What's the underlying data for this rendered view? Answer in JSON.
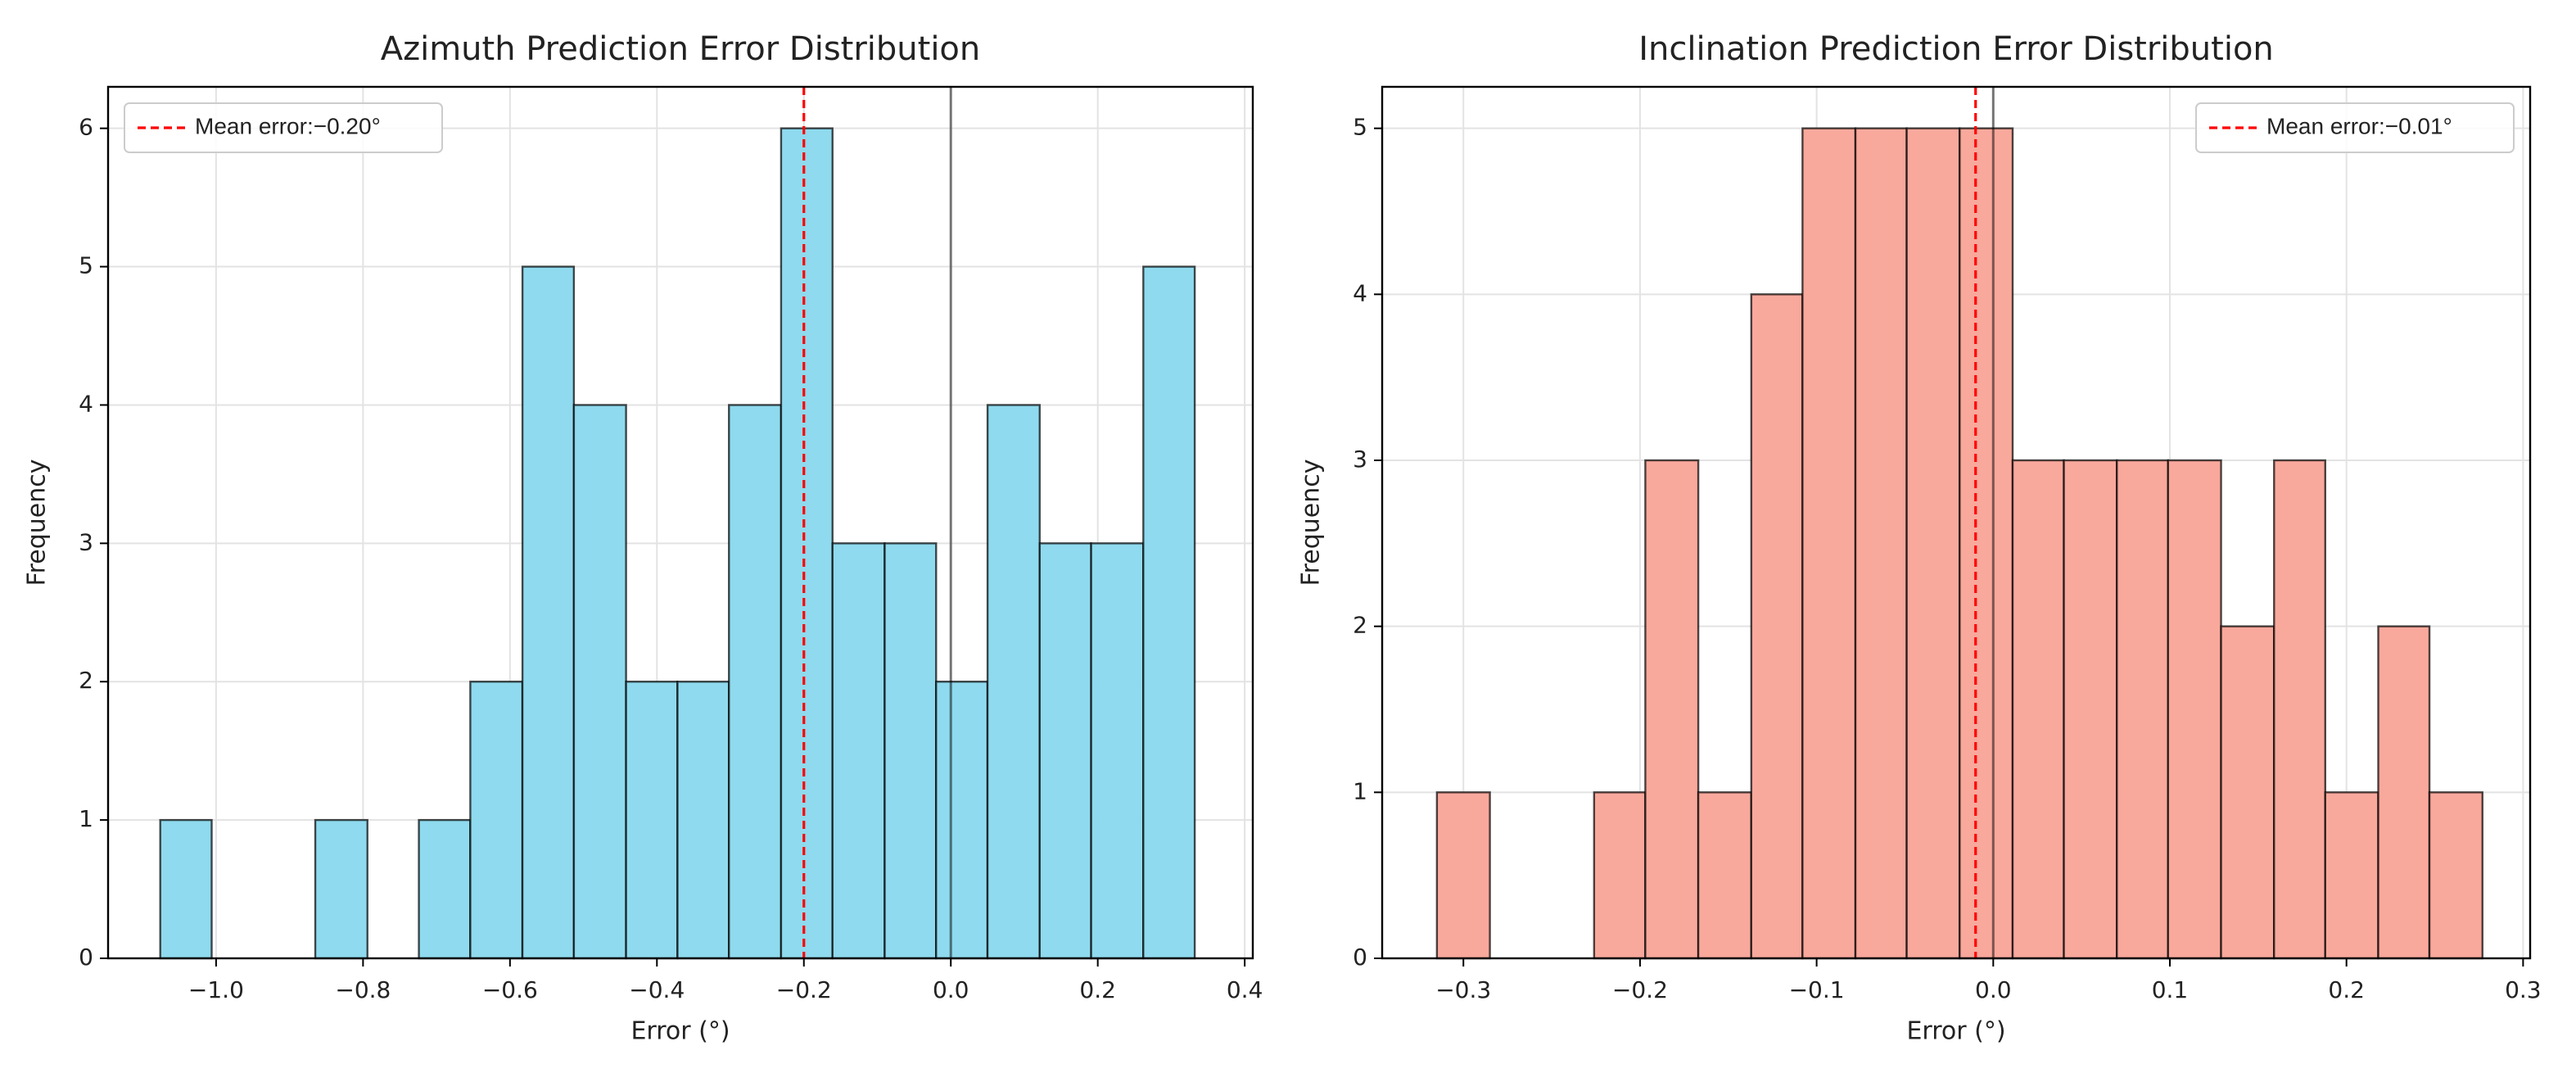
{
  "chart_data": [
    {
      "type": "histogram",
      "title": "Azimuth Prediction Error Distribution",
      "xlabel": "Error (°)",
      "ylabel": "Frequency",
      "bins": [
        -1.076,
        -1.006,
        -0.935,
        -0.865,
        -0.794,
        -0.724,
        -0.654,
        -0.583,
        -0.513,
        -0.442,
        -0.372,
        -0.302,
        -0.231,
        -0.161,
        -0.09,
        -0.02,
        0.05,
        0.121,
        0.191,
        0.262,
        0.332
      ],
      "counts": [
        1,
        0,
        0,
        1,
        0,
        1,
        2,
        5,
        4,
        2,
        2,
        4,
        6,
        3,
        3,
        2,
        4,
        3,
        3,
        5
      ],
      "color": "#8fdaee",
      "xlim": [
        -1.147,
        0.411
      ],
      "ylim": [
        0,
        6.3
      ],
      "xticks": [
        {
          "value": -1.0,
          "label": "−1.0"
        },
        {
          "value": -0.8,
          "label": "−0.8"
        },
        {
          "value": -0.6,
          "label": "−0.6"
        },
        {
          "value": -0.4,
          "label": "−0.4"
        },
        {
          "value": -0.2,
          "label": "−0.2"
        },
        {
          "value": 0.0,
          "label": "0.0"
        },
        0.2,
        0.4
      ],
      "yticks": [
        0,
        1,
        2,
        3,
        4,
        5,
        6
      ],
      "grid": true,
      "zero_line": 0,
      "mean_line": {
        "value": -0.2,
        "label": "Mean error:−0.20°",
        "color": "#ff0000"
      },
      "legend": "upper left"
    },
    {
      "type": "histogram",
      "title": "Inclination Prediction Error Distribution",
      "xlabel": "Error (°)",
      "ylabel": "Frequency",
      "bins": [
        -0.315,
        -0.285,
        -0.256,
        -0.226,
        -0.197,
        -0.167,
        -0.137,
        -0.108,
        -0.078,
        -0.049,
        -0.019,
        0.011,
        0.04,
        0.07,
        0.099,
        0.129,
        0.159,
        0.188,
        0.218,
        0.247,
        0.277
      ],
      "counts": [
        1,
        0,
        0,
        1,
        3,
        1,
        4,
        5,
        5,
        5,
        5,
        3,
        3,
        3,
        3,
        2,
        3,
        1,
        2,
        1
      ],
      "color": "#f9a89c",
      "xlim": [
        -0.346,
        0.304
      ],
      "ylim": [
        0,
        5.25
      ],
      "xticks": [
        {
          "value": -0.3,
          "label": "−0.3"
        },
        {
          "value": -0.2,
          "label": "−0.2"
        },
        {
          "value": -0.1,
          "label": "−0.1"
        },
        {
          "value": 0.0,
          "label": "0.0"
        },
        0.1,
        0.2,
        0.3
      ],
      "yticks": [
        0,
        1,
        2,
        3,
        4,
        5
      ],
      "grid": true,
      "zero_line": 0,
      "mean_line": {
        "value": -0.01,
        "label": "Mean error:−0.01°",
        "color": "#ff0000"
      },
      "legend": "upper right"
    }
  ]
}
